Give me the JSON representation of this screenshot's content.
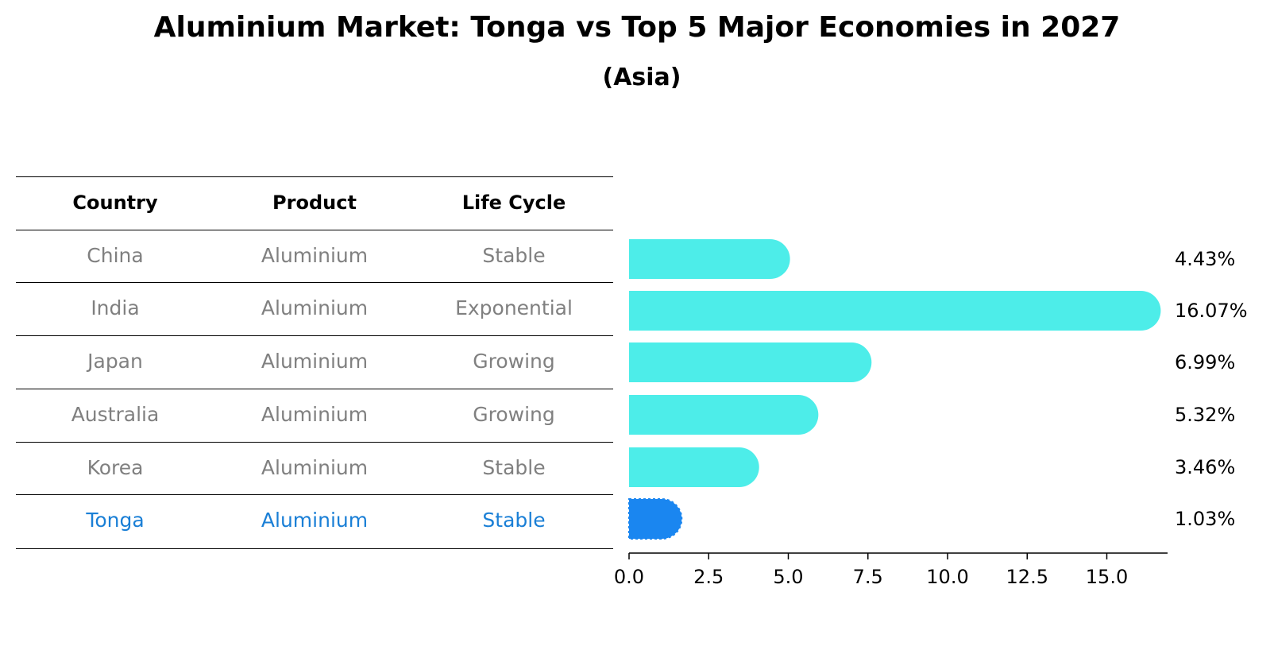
{
  "title": "Aluminium Market: Tonga vs Top 5 Major Economies in 2027",
  "subtitle": "(Asia)",
  "table": {
    "headers": [
      "Country",
      "Product",
      "Life Cycle"
    ],
    "rows": [
      {
        "country": "China",
        "product": "Aluminium",
        "life_cycle": "Stable"
      },
      {
        "country": "India",
        "product": "Aluminium",
        "life_cycle": "Exponential"
      },
      {
        "country": "Japan",
        "product": "Aluminium",
        "life_cycle": "Growing"
      },
      {
        "country": "Australia",
        "product": "Aluminium",
        "life_cycle": "Growing"
      },
      {
        "country": "Korea",
        "product": "Aluminium",
        "life_cycle": "Stable"
      },
      {
        "country": "Tonga",
        "product": "Aluminium",
        "life_cycle": "Stable"
      }
    ]
  },
  "colors": {
    "bar": "#4dede9",
    "highlight_bar": "#1a86f0",
    "highlight_text": "#1a7fd6",
    "muted_text": "#808080"
  },
  "chart_data": {
    "type": "bar",
    "orientation": "horizontal",
    "categories": [
      "China",
      "India",
      "Japan",
      "Australia",
      "Korea",
      "Tonga"
    ],
    "values": [
      4.43,
      16.07,
      6.99,
      5.32,
      3.46,
      1.03
    ],
    "value_labels": [
      "4.43%",
      "16.07%",
      "6.99%",
      "5.32%",
      "3.46%",
      "1.03%"
    ],
    "highlight": "Tonga",
    "xlim": [
      0,
      17
    ],
    "xticks": [
      0.0,
      2.5,
      5.0,
      7.5,
      10.0,
      12.5,
      15.0
    ],
    "xtick_labels": [
      "0.0",
      "2.5",
      "5.0",
      "7.5",
      "10.0",
      "12.5",
      "15.0"
    ],
    "title": "Aluminium Market: Tonga vs Top 5 Major Economies in 2027",
    "subtitle": "(Asia)",
    "grid": false
  }
}
